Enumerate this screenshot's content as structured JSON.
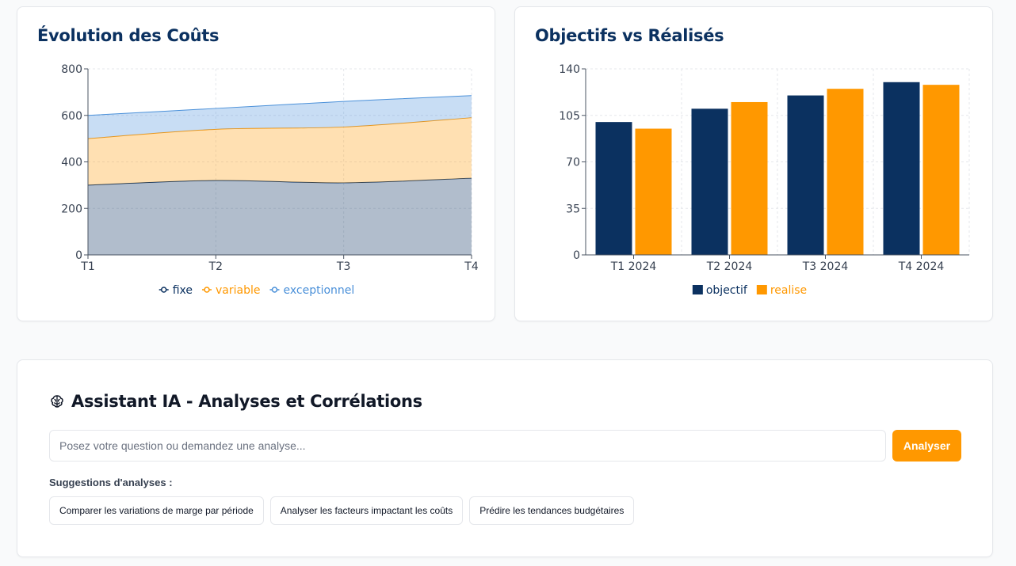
{
  "costs_card": {
    "title": "Évolution des Coûts",
    "chart_data": {
      "type": "area",
      "stacked": true,
      "categories": [
        "T1",
        "T2",
        "T3",
        "T4"
      ],
      "series": [
        {
          "name": "fixe",
          "values": [
            300,
            320,
            310,
            330
          ],
          "color": "#0b3160"
        },
        {
          "name": "variable",
          "values": [
            200,
            220,
            240,
            260
          ],
          "color": "#ff9800"
        },
        {
          "name": "exceptionnel",
          "values": [
            100,
            90,
            110,
            95
          ],
          "color": "#4a90d9"
        }
      ],
      "yticks": [
        0,
        200,
        400,
        600,
        800
      ],
      "ylim": [
        0,
        800
      ],
      "grid": true,
      "legend_position": "bottom"
    }
  },
  "targets_card": {
    "title": "Objectifs vs Réalisés",
    "chart_data": {
      "type": "bar",
      "categories": [
        "T1 2024",
        "T2 2024",
        "T3 2024",
        "T4 2024"
      ],
      "series": [
        {
          "name": "objectif",
          "values": [
            100,
            110,
            120,
            130
          ],
          "color": "#0b3160"
        },
        {
          "name": "realise",
          "values": [
            95,
            115,
            125,
            128
          ],
          "color": "#ff9800"
        }
      ],
      "yticks": [
        0,
        35,
        70,
        105,
        140
      ],
      "ylim": [
        0,
        140
      ],
      "grid": true,
      "legend_position": "bottom"
    }
  },
  "ai_assistant": {
    "icon": "brain-icon",
    "title": "Assistant IA - Analyses et Corrélations",
    "input_placeholder": "Posez votre question ou demandez une analyse...",
    "input_value": "",
    "analyze_button": "Analyser",
    "suggestions_label": "Suggestions d'analyses :",
    "suggestions": [
      "Comparer les variations de marge par période",
      "Analyser les facteurs impactant les coûts",
      "Prédire les tendances budgétaires"
    ],
    "accent_color": "#ff9800"
  }
}
